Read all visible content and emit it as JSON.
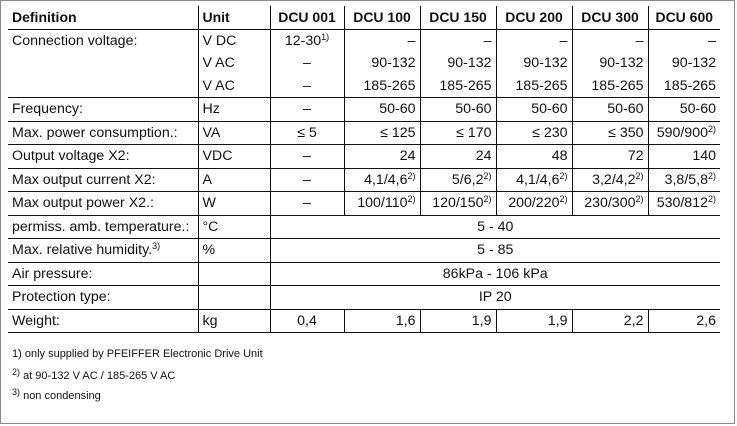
{
  "table": {
    "headers": [
      "Definition",
      "Unit",
      "DCU 001",
      "DCU 100",
      "DCU 150",
      "DCU 200",
      "DCU 300",
      "DCU 600"
    ],
    "rows": [
      {
        "label": "Connection voltage:",
        "unit": "V DC",
        "values": [
          {
            "t": "12-30",
            "s": "1)"
          },
          {
            "t": "–"
          },
          {
            "t": "–"
          },
          {
            "t": "–"
          },
          {
            "t": "–"
          },
          {
            "t": "–"
          }
        ]
      },
      {
        "label": "",
        "unit": "V AC",
        "values": [
          {
            "t": "–"
          },
          {
            "t": "90-132"
          },
          {
            "t": "90-132"
          },
          {
            "t": "90-132"
          },
          {
            "t": "90-132"
          },
          {
            "t": "90-132"
          }
        ]
      },
      {
        "label": "",
        "unit": "V AC",
        "values": [
          {
            "t": "–"
          },
          {
            "t": "185-265"
          },
          {
            "t": "185-265"
          },
          {
            "t": "185-265"
          },
          {
            "t": "185-265"
          },
          {
            "t": "185-265"
          }
        ]
      },
      {
        "label": "Frequency:",
        "unit": "Hz",
        "values": [
          {
            "t": "–"
          },
          {
            "t": "50-60"
          },
          {
            "t": "50-60"
          },
          {
            "t": "50-60"
          },
          {
            "t": "50-60"
          },
          {
            "t": "50-60"
          }
        ]
      },
      {
        "label": "Max. power consumption.:",
        "unit": "VA",
        "values": [
          {
            "t": "≤ 5"
          },
          {
            "t": "≤ 125"
          },
          {
            "t": "≤ 170"
          },
          {
            "t": "≤ 230"
          },
          {
            "t": "≤ 350"
          },
          {
            "t": "590/900",
            "s": "2)"
          }
        ]
      },
      {
        "label": "Output voltage X2:",
        "unit": "VDC",
        "values": [
          {
            "t": "–"
          },
          {
            "t": "24"
          },
          {
            "t": "24"
          },
          {
            "t": "48"
          },
          {
            "t": "72"
          },
          {
            "t": "140"
          }
        ]
      },
      {
        "label": "Max output current X2:",
        "unit": "A",
        "values": [
          {
            "t": "–"
          },
          {
            "t": "4,1/4,6",
            "s": "2)"
          },
          {
            "t": "5/6,2",
            "s": "2)"
          },
          {
            "t": "4,1/4,6",
            "s": "2)"
          },
          {
            "t": "3,2/4,2",
            "s": "2)"
          },
          {
            "t": "3,8/5,8",
            "s": "2)"
          }
        ]
      },
      {
        "label": "Max output power X2.:",
        "unit": "W",
        "values": [
          {
            "t": "–"
          },
          {
            "t": "100/110",
            "s": "2)"
          },
          {
            "t": "120/150",
            "s": "2)"
          },
          {
            "t": "200/220",
            "s": "2)"
          },
          {
            "t": "230/300",
            "s": "2)"
          },
          {
            "t": "530/812",
            "s": "2)"
          }
        ]
      },
      {
        "label": "permiss. amb. temperature.:",
        "unit": "°C",
        "span": "5 - 40"
      },
      {
        "label": "Max. relative humidity.",
        "label_sup": "3)",
        "unit": "%",
        "span": "5 - 85"
      },
      {
        "label": "Air pressure:",
        "unit": "",
        "span": "86kPa - 106 kPa"
      },
      {
        "label": "Protection type:",
        "unit": "",
        "span": "IP 20"
      },
      {
        "label": "Weight:",
        "unit": "kg",
        "values": [
          {
            "t": "0,4"
          },
          {
            "t": "1,6"
          },
          {
            "t": "1,9"
          },
          {
            "t": "1,9"
          },
          {
            "t": "2,2"
          },
          {
            "t": "2,6"
          }
        ]
      }
    ]
  },
  "footnotes": [
    {
      "text": "1) only supplied by PFEIFFER Electronic Drive Unit",
      "mark": ""
    },
    {
      "mark": "2)",
      "text": " at  90-132 V AC / 185-265 V AC"
    },
    {
      "mark": "3)",
      "text": " non condensing"
    }
  ]
}
